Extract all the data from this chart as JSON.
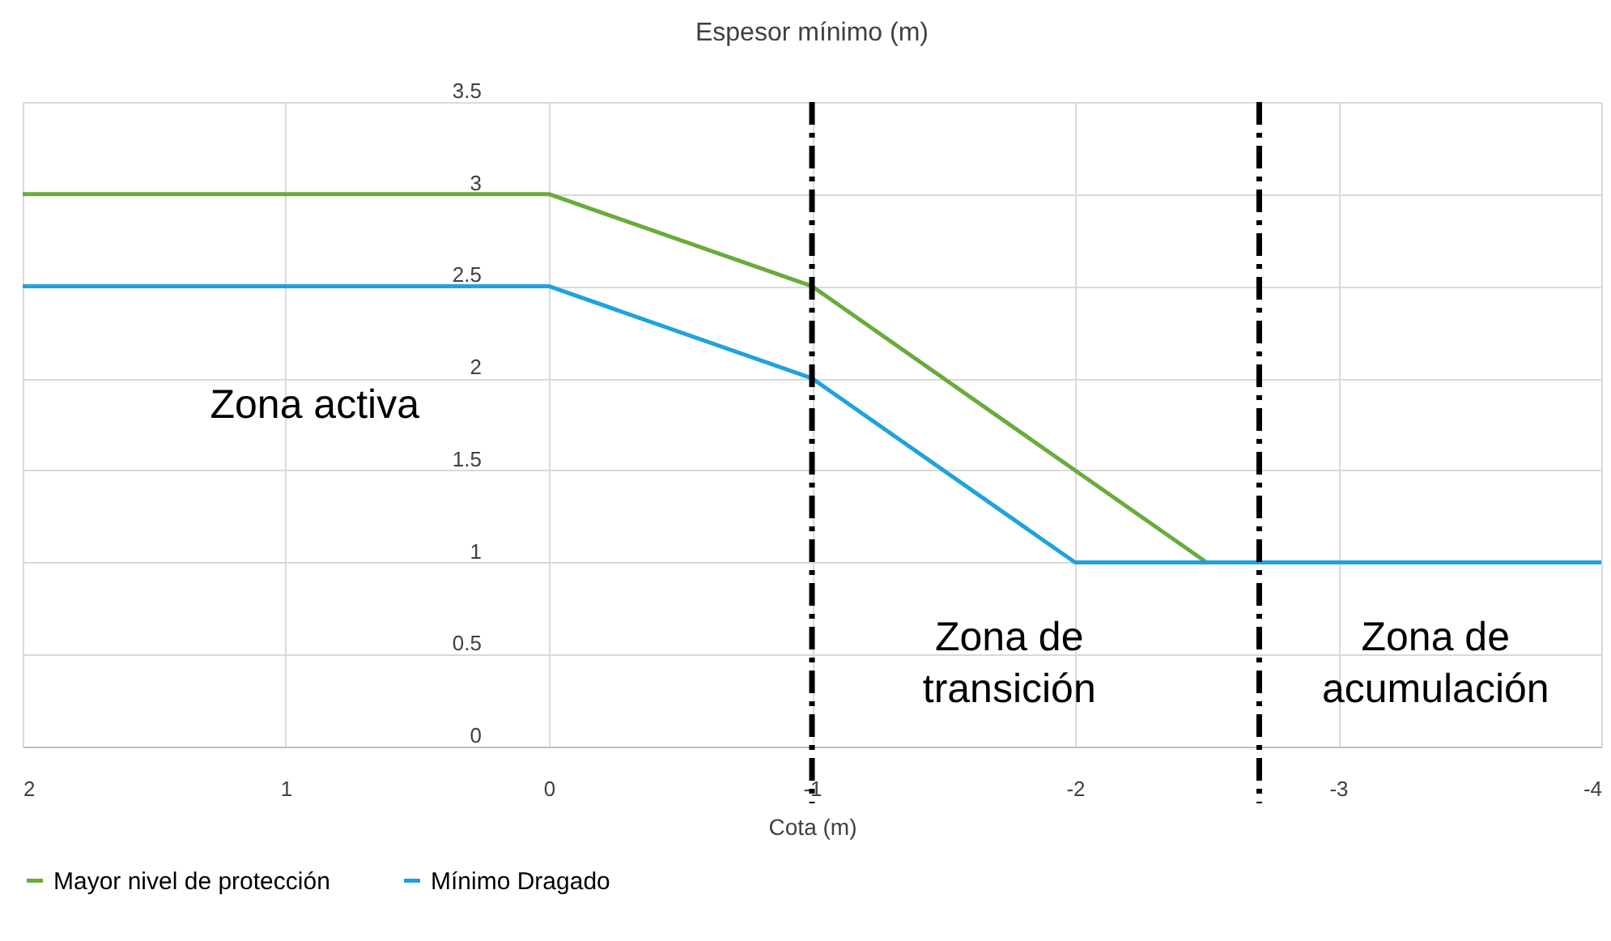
{
  "chart_data": {
    "type": "line",
    "title": "Espesor mínimo (m)",
    "xlabel": "Cota (m)",
    "series": [
      {
        "name": "Mayor nivel de protección",
        "color": "#6aab3c",
        "x": [
          2,
          0,
          -1,
          -2.5
        ],
        "values": [
          3,
          3,
          2.5,
          1
        ]
      },
      {
        "name": "Mínimo Dragado",
        "color": "#1fa3dc",
        "x": [
          2,
          0,
          -1,
          -2,
          -4
        ],
        "values": [
          2.5,
          2.5,
          2,
          1,
          1
        ]
      }
    ],
    "xlim": [
      2,
      -4
    ],
    "xticks": [
      2,
      1,
      0,
      -1,
      -2,
      -3,
      -4
    ],
    "ylim": [
      0,
      3.5
    ],
    "yticks": [
      0,
      0.5,
      1,
      1.5,
      2,
      2.5,
      3,
      3.5
    ],
    "ref_lines": [
      {
        "axis": "x",
        "value": -1,
        "color": "#000000",
        "line_style": "dashdot"
      },
      {
        "axis": "x",
        "value": -2.7,
        "color": "#000000",
        "line_style": "dashdot"
      }
    ],
    "annotations": [
      "Zona activa",
      "Zona de\ntransición",
      "Zona de\nacumulación"
    ],
    "grid": true,
    "legend": "bottom",
    "marker": "none",
    "line_style": "solid"
  }
}
